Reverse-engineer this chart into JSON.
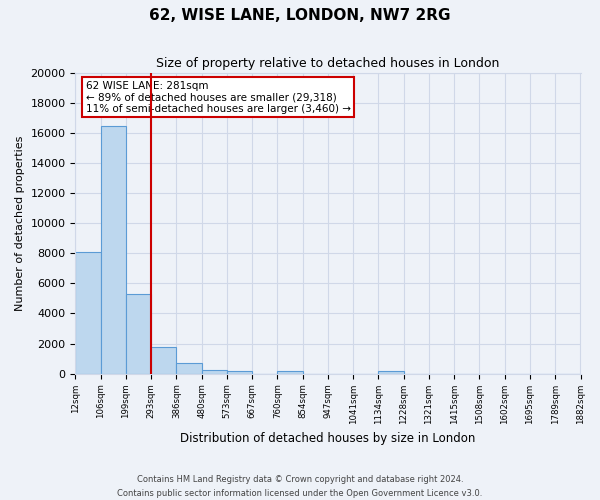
{
  "title": "62, WISE LANE, LONDON, NW7 2RG",
  "subtitle": "Size of property relative to detached houses in London",
  "xlabel": "Distribution of detached houses by size in London",
  "ylabel": "Number of detached properties",
  "bin_labels": [
    "12sqm",
    "106sqm",
    "199sqm",
    "293sqm",
    "386sqm",
    "480sqm",
    "573sqm",
    "667sqm",
    "760sqm",
    "854sqm",
    "947sqm",
    "1041sqm",
    "1134sqm",
    "1228sqm",
    "1321sqm",
    "1415sqm",
    "1508sqm",
    "1602sqm",
    "1695sqm",
    "1789sqm",
    "1882sqm"
  ],
  "bar_values": [
    8100,
    16500,
    5300,
    1750,
    700,
    270,
    170,
    0,
    200,
    0,
    0,
    0,
    150,
    0,
    0,
    0,
    0,
    0,
    0,
    0
  ],
  "bar_color": "#bdd7ee",
  "bar_edge_color": "#5b9bd5",
  "ylim": [
    0,
    20000
  ],
  "yticks": [
    0,
    2000,
    4000,
    6000,
    8000,
    10000,
    12000,
    14000,
    16000,
    18000,
    20000
  ],
  "vline_pos": 2.5,
  "annotation_line1": "62 WISE LANE: 281sqm",
  "annotation_line2": "← 89% of detached houses are smaller (29,318)",
  "annotation_line3": "11% of semi-detached houses are larger (3,460) →",
  "annotation_box_color": "#ffffff",
  "annotation_box_edge_color": "#cc0000",
  "grid_color": "#d0d8e8",
  "background_color": "#eef2f8",
  "footer_line1": "Contains HM Land Registry data © Crown copyright and database right 2024.",
  "footer_line2": "Contains public sector information licensed under the Open Government Licence v3.0."
}
